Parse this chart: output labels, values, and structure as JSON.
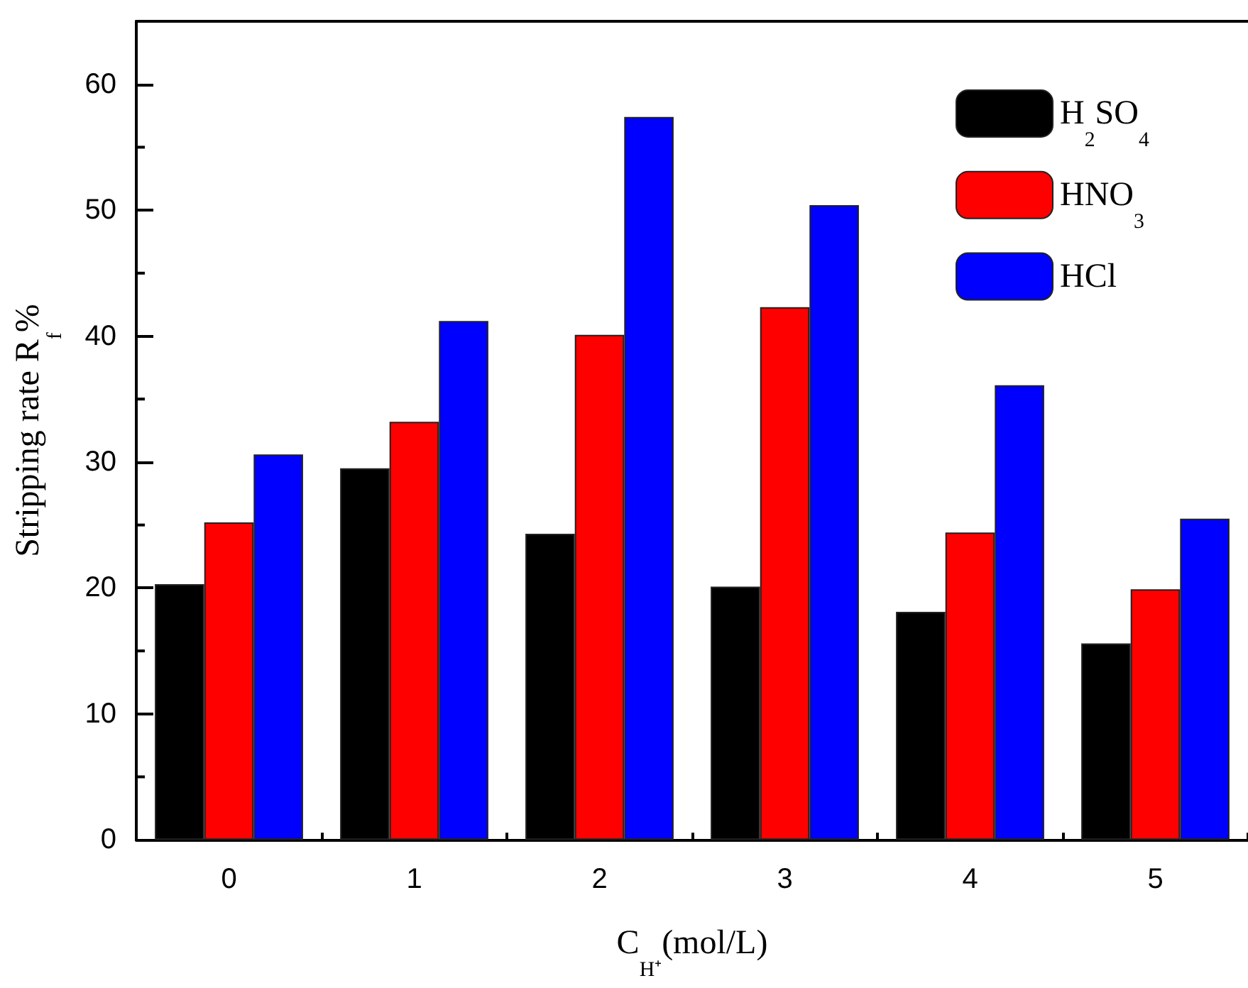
{
  "chart_data": {
    "type": "bar",
    "xlabel": "C$_{H⁺}$(mol/L)",
    "ylabel": "Stripping rate R$_{f}$%",
    "categories": [
      "0",
      "1",
      "2",
      "3",
      "4",
      "5"
    ],
    "series": [
      {
        "name": "H$_{2}$SO$_{4}$",
        "color": "#000000",
        "values": [
          20.3,
          29.5,
          24.3,
          20.1,
          18.1,
          15.6
        ]
      },
      {
        "name": "HNO$_{3}$",
        "color": "#ff0000",
        "values": [
          25.2,
          33.2,
          40.1,
          42.3,
          24.4,
          19.9
        ]
      },
      {
        "name": "HCl",
        "color": "#0000ff",
        "values": [
          30.6,
          41.2,
          57.4,
          50.4,
          36.1,
          25.5
        ]
      }
    ],
    "ylim": [
      0,
      65
    ],
    "yticks": [
      0,
      10,
      20,
      30,
      40,
      50,
      60
    ],
    "grid": false,
    "legend": "top right"
  }
}
